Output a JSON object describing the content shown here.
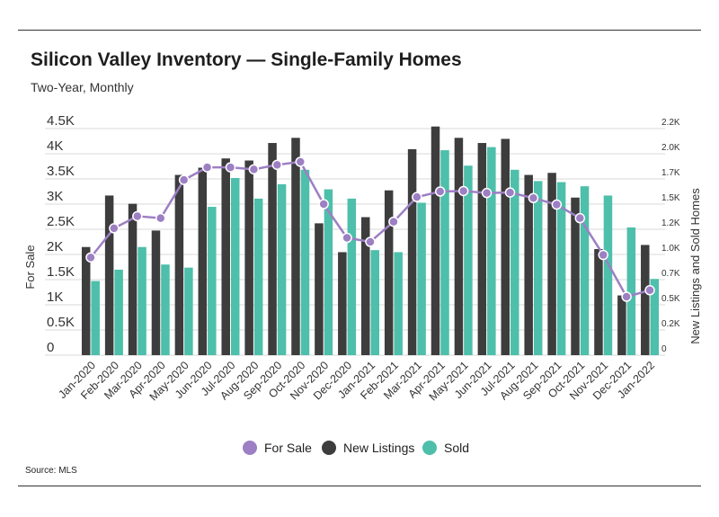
{
  "header": {
    "title": "Silicon Valley Inventory — Single-Family Homes",
    "subtitle": "Two-Year, Monthly"
  },
  "footer": {
    "source": "Source:  MLS"
  },
  "colors": {
    "for_sale": "#9d7fc3",
    "new_listings": "#3d3d3d",
    "sold": "#4dbfaa",
    "grid": "#d9d9d9"
  },
  "chart_data": {
    "type": "bar",
    "categories": [
      "Jan-2020",
      "Feb-2020",
      "Mar-2020",
      "Apr-2020",
      "May-2020",
      "Jun-2020",
      "Jul-2020",
      "Aug-2020",
      "Sep-2020",
      "Oct-2020",
      "Nov-2020",
      "Dec-2020",
      "Jan-2021",
      "Feb-2021",
      "Mar-2021",
      "Apr-2021",
      "May-2021",
      "Jun-2021",
      "Jul-2021",
      "Aug-2021",
      "Sep-2021",
      "Oct-2021",
      "Nov-2021",
      "Dec-2021",
      "Jan-2022"
    ],
    "series": [
      {
        "name": "For Sale",
        "type": "line",
        "axis": "left",
        "values": [
          1940,
          2520,
          2760,
          2720,
          3480,
          3730,
          3730,
          3690,
          3780,
          3840,
          3000,
          2330,
          2250,
          2650,
          3140,
          3250,
          3260,
          3220,
          3230,
          3120,
          2990,
          2720,
          1990,
          1160,
          1290
        ]
      },
      {
        "name": "New Listings",
        "type": "bar",
        "axis": "right",
        "values": [
          1050,
          1550,
          1470,
          1210,
          1750,
          1820,
          1910,
          1890,
          2060,
          2110,
          1280,
          1000,
          1340,
          1600,
          2000,
          2220,
          2110,
          2060,
          2100,
          1750,
          1770,
          1530,
          1030,
          580,
          1070
        ]
      },
      {
        "name": "Sold",
        "type": "bar",
        "axis": "right",
        "values": [
          720,
          830,
          1050,
          880,
          850,
          1440,
          1720,
          1520,
          1660,
          1800,
          1610,
          1520,
          1020,
          1000,
          1480,
          1990,
          1840,
          2020,
          1800,
          1690,
          1680,
          1640,
          1550,
          1240,
          740
        ]
      }
    ],
    "y_left": {
      "label": "For Sale",
      "ylim": [
        0,
        4500
      ],
      "ticks": [
        "0",
        "0.5K",
        "1K",
        "1.5K",
        "2K",
        "2.5K",
        "3K",
        "3.5K",
        "4K",
        "4.5K"
      ]
    },
    "y_right": {
      "label": "New Listings and Sold Homes",
      "ylim": [
        0,
        2200
      ],
      "ticks": [
        "0",
        "0.2K",
        "0.5K",
        "0.7K",
        "1.0K",
        "1.2K",
        "1.5K",
        "1.7K",
        "2.0K",
        "2.2K"
      ]
    },
    "grid": true,
    "legend": {
      "placement": "bottom",
      "items": [
        "For Sale",
        "New Listings",
        "Sold"
      ]
    }
  }
}
